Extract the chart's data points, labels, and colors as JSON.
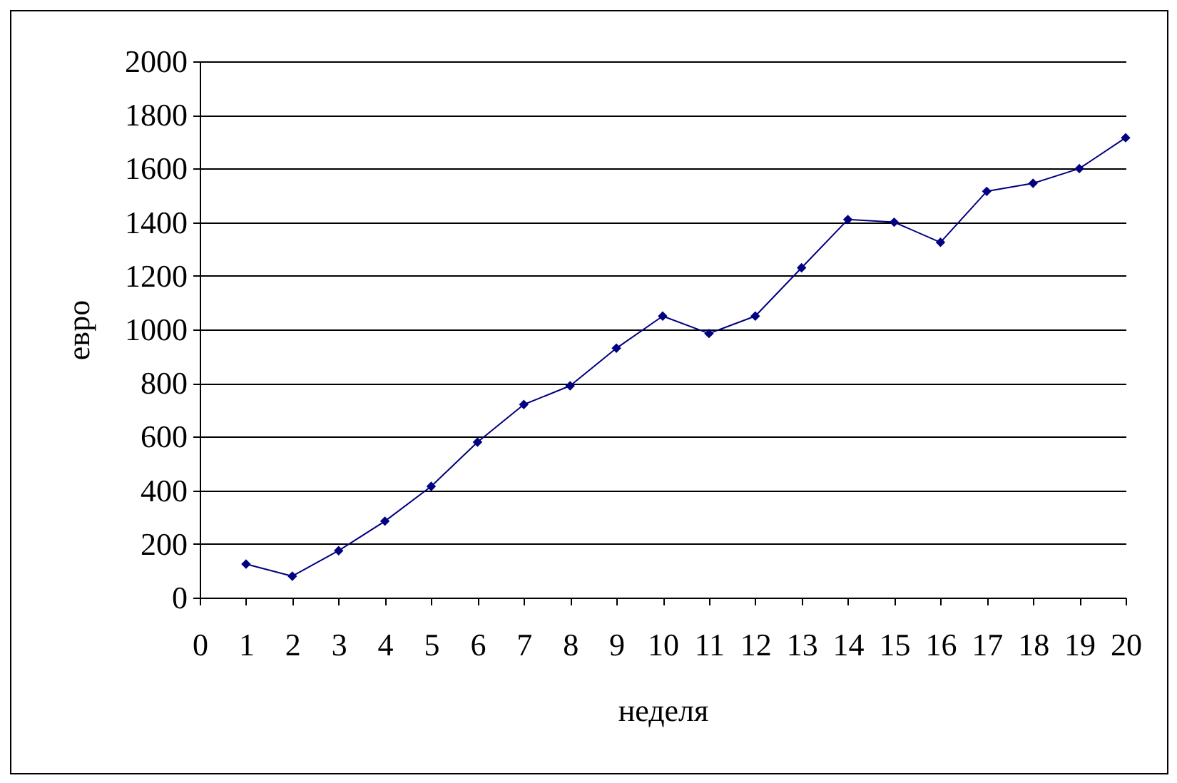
{
  "chart_data": {
    "type": "line",
    "xlabel": "неделя",
    "ylabel": "евро",
    "x": [
      1,
      2,
      3,
      4,
      5,
      6,
      7,
      8,
      9,
      10,
      11,
      12,
      13,
      14,
      15,
      16,
      17,
      18,
      19,
      20
    ],
    "series": [
      {
        "color": "#000080",
        "values": [
          125,
          80,
          175,
          285,
          415,
          580,
          720,
          790,
          930,
          1050,
          985,
          1050,
          1230,
          1410,
          1400,
          1325,
          1515,
          1545,
          1600,
          1715
        ]
      }
    ],
    "xlim": [
      0,
      20
    ],
    "xticks": [
      0,
      1,
      2,
      3,
      4,
      5,
      6,
      7,
      8,
      9,
      10,
      11,
      12,
      13,
      14,
      15,
      16,
      17,
      18,
      19,
      20
    ],
    "ylim": [
      0,
      2000
    ],
    "yticks": [
      0,
      200,
      400,
      600,
      800,
      1000,
      1200,
      1400,
      1600,
      1800,
      2000
    ],
    "grid": "y",
    "legend": false,
    "marker": "diamond",
    "line_style": "solid"
  }
}
